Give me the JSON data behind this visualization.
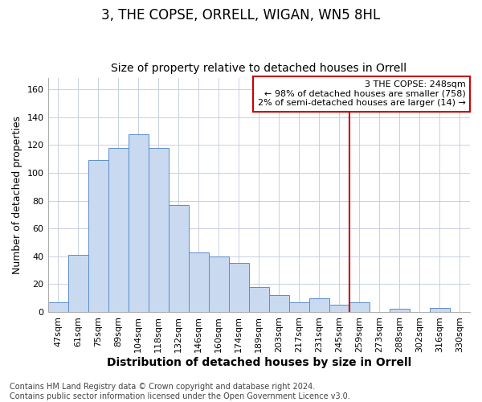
{
  "title": "3, THE COPSE, ORRELL, WIGAN, WN5 8HL",
  "subtitle": "Size of property relative to detached houses in Orrell",
  "xlabel": "Distribution of detached houses by size in Orrell",
  "ylabel": "Number of detached properties",
  "categories": [
    "47sqm",
    "61sqm",
    "75sqm",
    "89sqm",
    "104sqm",
    "118sqm",
    "132sqm",
    "146sqm",
    "160sqm",
    "174sqm",
    "189sqm",
    "203sqm",
    "217sqm",
    "231sqm",
    "245sqm",
    "259sqm",
    "273sqm",
    "288sqm",
    "302sqm",
    "316sqm",
    "330sqm"
  ],
  "values": [
    7,
    41,
    109,
    118,
    128,
    118,
    77,
    43,
    40,
    35,
    18,
    12,
    7,
    10,
    5,
    7,
    0,
    2,
    0,
    3,
    0
  ],
  "bar_color": "#c9d9f0",
  "bar_edge_color": "#5b8dc8",
  "grid_color": "#c8cfe0",
  "background_color": "#ffffff",
  "vline_x": 14.5,
  "vline_color": "#cc0000",
  "annotation_text": "3 THE COPSE: 248sqm\n← 98% of detached houses are smaller (758)\n2% of semi-detached houses are larger (14) →",
  "annotation_box_color": "#cc0000",
  "ylim": [
    0,
    168
  ],
  "yticks": [
    0,
    20,
    40,
    60,
    80,
    100,
    120,
    140,
    160
  ],
  "footer_line1": "Contains HM Land Registry data © Crown copyright and database right 2024.",
  "footer_line2": "Contains public sector information licensed under the Open Government Licence v3.0.",
  "title_fontsize": 12,
  "subtitle_fontsize": 10,
  "xlabel_fontsize": 10,
  "ylabel_fontsize": 9,
  "tick_fontsize": 8,
  "annotation_fontsize": 8,
  "footer_fontsize": 7
}
